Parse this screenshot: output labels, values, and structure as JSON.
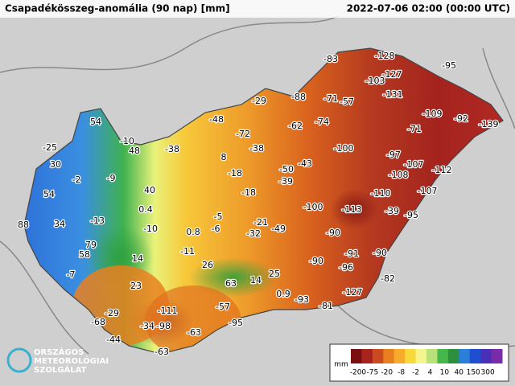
{
  "header": {
    "title": "Csapadékösszeg-anomália (90 nap) [mm]",
    "timestamp": "2022-07-06 02:00 (00:00 UTC)"
  },
  "labels": [
    -83,
    -128,
    -95,
    -103,
    -127,
    -131,
    -29,
    -88,
    -71,
    -57,
    -48,
    -72,
    -62,
    -74,
    -109,
    -92,
    -139,
    54,
    -10,
    48,
    -25,
    -38,
    -38,
    -71,
    -100,
    -97,
    8,
    -18,
    -50,
    -43,
    -107,
    -112,
    30,
    -2,
    -9,
    -39,
    -108,
    40,
    -18,
    -110,
    -107,
    54,
    0.4,
    -5,
    -100,
    -113,
    -39,
    -95,
    -13,
    34,
    88,
    -10,
    -21,
    -49,
    0.8,
    -6,
    -32,
    -90,
    79,
    58,
    -11,
    -91,
    -90,
    14,
    -90,
    26,
    -96,
    -7,
    25,
    -82,
    23,
    63,
    14,
    0.9,
    -93,
    -127,
    -81,
    -57,
    -111,
    -29,
    -68,
    -34,
    -98,
    -95,
    -63,
    -44,
    -63
  ],
  "legend": {
    "unit": "mm",
    "labels": [
      -200,
      -75,
      -20,
      -8,
      -2,
      4,
      10,
      40,
      150,
      300
    ],
    "colors": [
      "#7a0f12",
      "#a8231c",
      "#cc4a1f",
      "#e9801f",
      "#f6ac2a",
      "#f7d93a",
      "#f4f58c",
      "#b7e27a",
      "#46b84a",
      "#2e8f3c",
      "#2a7fd8",
      "#1f4fd0",
      "#4a2fb8",
      "#7a2ba8"
    ]
  },
  "logo": {
    "lines": [
      "ORSZÁGOS",
      "METEOROLÓGIAI",
      "SZOLGÁLAT"
    ]
  }
}
